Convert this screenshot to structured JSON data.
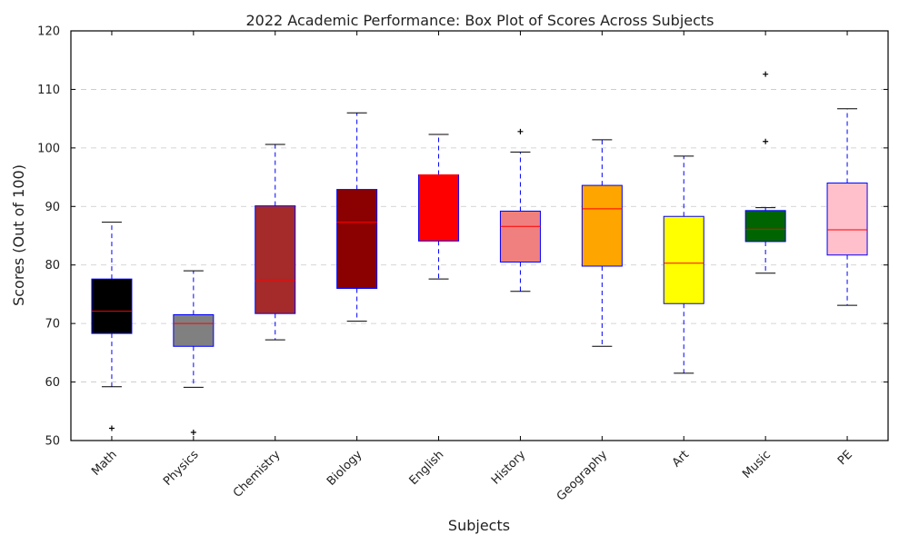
{
  "chart_data": {
    "type": "box",
    "title": "2022 Academic Performance: Box Plot of Scores Across Subjects",
    "xlabel": "Subjects",
    "ylabel": "Scores (Out of 100)",
    "ylim": [
      50,
      120
    ],
    "yticks": [
      50,
      60,
      70,
      80,
      90,
      100,
      110,
      120
    ],
    "grid": "horizontal-dashed",
    "box_edge_color": "#0000ff",
    "whisker_color": "#0000ff",
    "median_color": "#ff0000",
    "categories": [
      "Math",
      "Physics",
      "Chemistry",
      "Biology",
      "English",
      "History",
      "Geography",
      "Art",
      "Music",
      "PE"
    ],
    "boxes": [
      {
        "category": "Math",
        "color": "#000000",
        "whisker_low": 59.2,
        "q1": 68.3,
        "median": 72.1,
        "q3": 77.6,
        "whisker_high": 87.3,
        "outliers": [
          52.1
        ]
      },
      {
        "category": "Physics",
        "color": "#808080",
        "whisker_low": 59.1,
        "q1": 66.1,
        "median": 70.0,
        "q3": 71.5,
        "whisker_high": 79.0,
        "outliers": [
          51.4
        ]
      },
      {
        "category": "Chemistry",
        "color": "#a52a2a",
        "whisker_low": 67.2,
        "q1": 71.7,
        "median": 77.3,
        "q3": 90.1,
        "whisker_high": 100.6,
        "outliers": []
      },
      {
        "category": "Biology",
        "color": "#8b0000",
        "whisker_low": 70.4,
        "q1": 76.0,
        "median": 87.3,
        "q3": 92.9,
        "whisker_high": 106.0,
        "outliers": []
      },
      {
        "category": "English",
        "color": "#ff0000",
        "whisker_low": 77.6,
        "q1": 84.1,
        "median": 95.4,
        "q3": 95.4,
        "whisker_high": 102.3,
        "outliers": []
      },
      {
        "category": "History",
        "color": "#f08080",
        "whisker_low": 75.5,
        "q1": 80.5,
        "median": 86.6,
        "q3": 89.2,
        "whisker_high": 99.3,
        "outliers": [
          102.8
        ]
      },
      {
        "category": "Geography",
        "color": "#ffa500",
        "whisker_low": 66.1,
        "q1": 79.8,
        "median": 89.6,
        "q3": 93.6,
        "whisker_high": 101.4,
        "outliers": []
      },
      {
        "category": "Art",
        "color": "#ffff00",
        "whisker_low": 61.5,
        "q1": 73.4,
        "median": 80.3,
        "q3": 88.3,
        "whisker_high": 98.6,
        "outliers": []
      },
      {
        "category": "Music",
        "color": "#006400",
        "whisker_low": 78.6,
        "q1": 84.0,
        "median": 86.1,
        "q3": 89.3,
        "whisker_high": 89.8,
        "outliers": [
          101.1,
          112.6
        ]
      },
      {
        "category": "PE",
        "color": "#ffc0cb",
        "whisker_low": 73.1,
        "q1": 81.7,
        "median": 86.0,
        "q3": 94.0,
        "whisker_high": 106.7,
        "outliers": []
      }
    ]
  }
}
